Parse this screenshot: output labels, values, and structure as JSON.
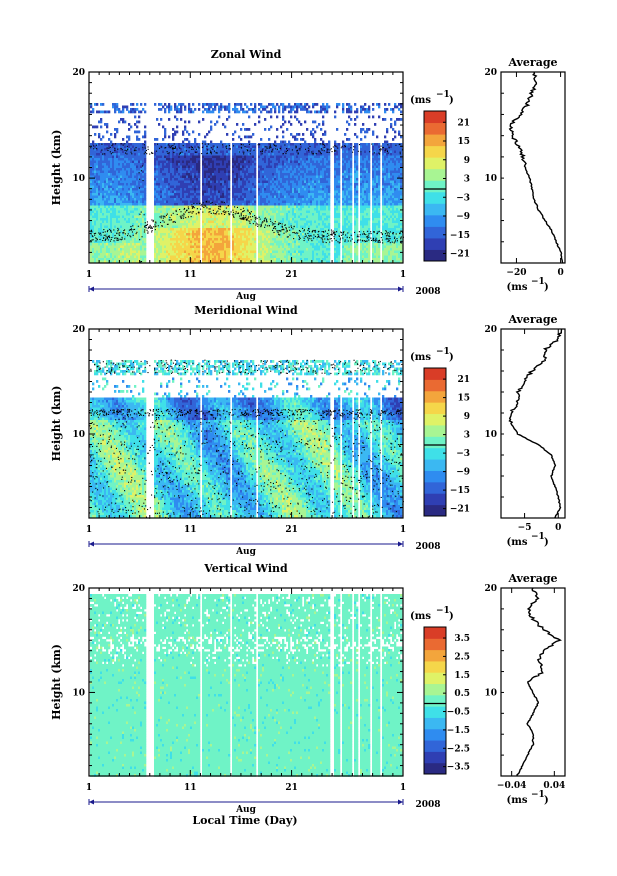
{
  "colors": {
    "scale": [
      "#2a2a82",
      "#2f3fb3",
      "#3165d8",
      "#2f8cf0",
      "#3bb8f2",
      "#3fe0e8",
      "#6ff3c6",
      "#a8f593",
      "#dff267",
      "#f5d64a",
      "#f3a53c",
      "#ea6a32",
      "#d93d27"
    ],
    "vertical_fill": "#6ff3c6",
    "axis": "#000000",
    "date_line": "#1a1a8c"
  },
  "panels": [
    {
      "title": "Zonal Wind",
      "ylabel": "Height (km)",
      "ytick_labels": [
        "20",
        "10"
      ],
      "xtick_labels": [
        "1",
        "11",
        "21",
        "1"
      ],
      "month_label": "Aug",
      "year_label": "2008",
      "unit_label": "(ms",
      "unit_exp": "−1",
      "colorbar_labels": [
        "21",
        "15",
        "9",
        "3",
        "−3",
        "−9",
        "−15",
        "−21"
      ],
      "avg_title": "Average",
      "avg_ytick_labels": [
        "20",
        "10"
      ],
      "avg_xtick_labels": [
        "−20",
        "0"
      ],
      "avg_unit": "(ms",
      "avg_unit_exp": "−1"
    },
    {
      "title": "Meridional Wind",
      "ylabel": "Height (km)",
      "ytick_labels": [
        "20",
        "10"
      ],
      "xtick_labels": [
        "1",
        "11",
        "21",
        "1"
      ],
      "month_label": "Aug",
      "year_label": "2008",
      "unit_label": "(ms",
      "unit_exp": "−1",
      "colorbar_labels": [
        "21",
        "15",
        "9",
        "3",
        "−3",
        "−9",
        "−15",
        "−21"
      ],
      "avg_title": "Average",
      "avg_ytick_labels": [
        "20",
        "10"
      ],
      "avg_xtick_labels": [
        "−5",
        "0"
      ],
      "avg_unit": "(ms",
      "avg_unit_exp": "−1"
    },
    {
      "title": "Vertical Wind",
      "ylabel": "Height (km)",
      "ytick_labels": [
        "20",
        "10"
      ],
      "xtick_labels": [
        "1",
        "11",
        "21",
        "1"
      ],
      "month_label": "Aug",
      "year_label": "2008",
      "unit_label": "(ms",
      "unit_exp": "−1",
      "colorbar_labels": [
        "3.5",
        "2.5",
        "1.5",
        "0.5",
        "−0.5",
        "−1.5",
        "−2.5",
        "−3.5"
      ],
      "avg_title": "Average",
      "avg_ytick_labels": [
        "20",
        "10"
      ],
      "avg_xtick_labels": [
        "−0.04",
        "0.04"
      ],
      "avg_unit": "(ms",
      "avg_unit_exp": "−1"
    }
  ],
  "xlabel": "Local Time (Day)",
  "chart_data": [
    {
      "type": "heatmap",
      "title": "Zonal Wind",
      "xlabel": "Aug",
      "ylabel": "Height (km)",
      "x_range": [
        "2008-08-01",
        "2008-09-01"
      ],
      "ylim": [
        2,
        20
      ],
      "colorbar_range": [
        -24,
        24
      ],
      "colorbar_ticks": [
        21,
        15,
        9,
        3,
        -3,
        -9,
        -15,
        -21
      ],
      "colorbar_unit": "ms-1",
      "average_profile": {
        "title": "Average",
        "xlim": [
          -27,
          2
        ],
        "x_ticks": [
          -20,
          0
        ],
        "height": [
          2,
          3,
          4,
          5,
          6,
          7,
          8,
          9,
          10,
          11,
          12,
          13,
          14,
          15,
          16,
          17,
          18,
          19,
          20
        ],
        "values": [
          1,
          0,
          -2,
          -4,
          -7,
          -10,
          -12,
          -13,
          -14,
          -16,
          -17,
          -19,
          -22,
          -23,
          -18,
          -15,
          -13,
          -11,
          -12
        ]
      }
    },
    {
      "type": "heatmap",
      "title": "Meridional Wind",
      "xlabel": "Aug",
      "ylabel": "Height (km)",
      "x_range": [
        "2008-08-01",
        "2008-09-01"
      ],
      "ylim": [
        2,
        20
      ],
      "colorbar_range": [
        -24,
        24
      ],
      "colorbar_ticks": [
        21,
        15,
        9,
        3,
        -3,
        -9,
        -15,
        -21
      ],
      "colorbar_unit": "ms-1",
      "average_profile": {
        "title": "Average",
        "xlim": [
          -8.5,
          1
        ],
        "x_ticks": [
          -5,
          0
        ],
        "height": [
          2,
          3,
          4,
          5,
          6,
          7,
          8,
          9,
          10,
          11,
          12,
          13,
          14,
          15,
          16,
          17,
          18,
          19,
          20
        ],
        "values": [
          -0.5,
          0.3,
          0,
          -0.5,
          -1,
          -0.5,
          -1,
          -3,
          -6,
          -7,
          -7,
          -6,
          -6,
          -5,
          -4,
          -2,
          -2,
          0,
          0.5
        ]
      }
    },
    {
      "type": "heatmap",
      "title": "Vertical Wind",
      "xlabel": "Aug",
      "ylabel": "Height (km)",
      "x_range": [
        "2008-08-01",
        "2008-09-01"
      ],
      "ylim": [
        2,
        20
      ],
      "colorbar_range": [
        -4,
        4
      ],
      "colorbar_ticks": [
        3.5,
        2.5,
        1.5,
        0.5,
        -0.5,
        -1.5,
        -2.5,
        -3.5
      ],
      "colorbar_unit": "ms-1",
      "average_profile": {
        "title": "Average",
        "xlim": [
          -0.06,
          0.06
        ],
        "x_ticks": [
          -0.04,
          0.04
        ],
        "height": [
          2,
          3,
          4,
          5,
          6,
          7,
          8,
          9,
          10,
          11,
          12,
          13,
          14,
          15,
          16,
          17,
          18,
          19,
          20
        ],
        "values": [
          -0.03,
          -0.02,
          -0.01,
          0,
          0,
          -0.01,
          0,
          0.01,
          0,
          -0.01,
          0.02,
          0.01,
          0.02,
          0.05,
          0.02,
          0,
          -0.01,
          0.01,
          0
        ]
      }
    }
  ]
}
